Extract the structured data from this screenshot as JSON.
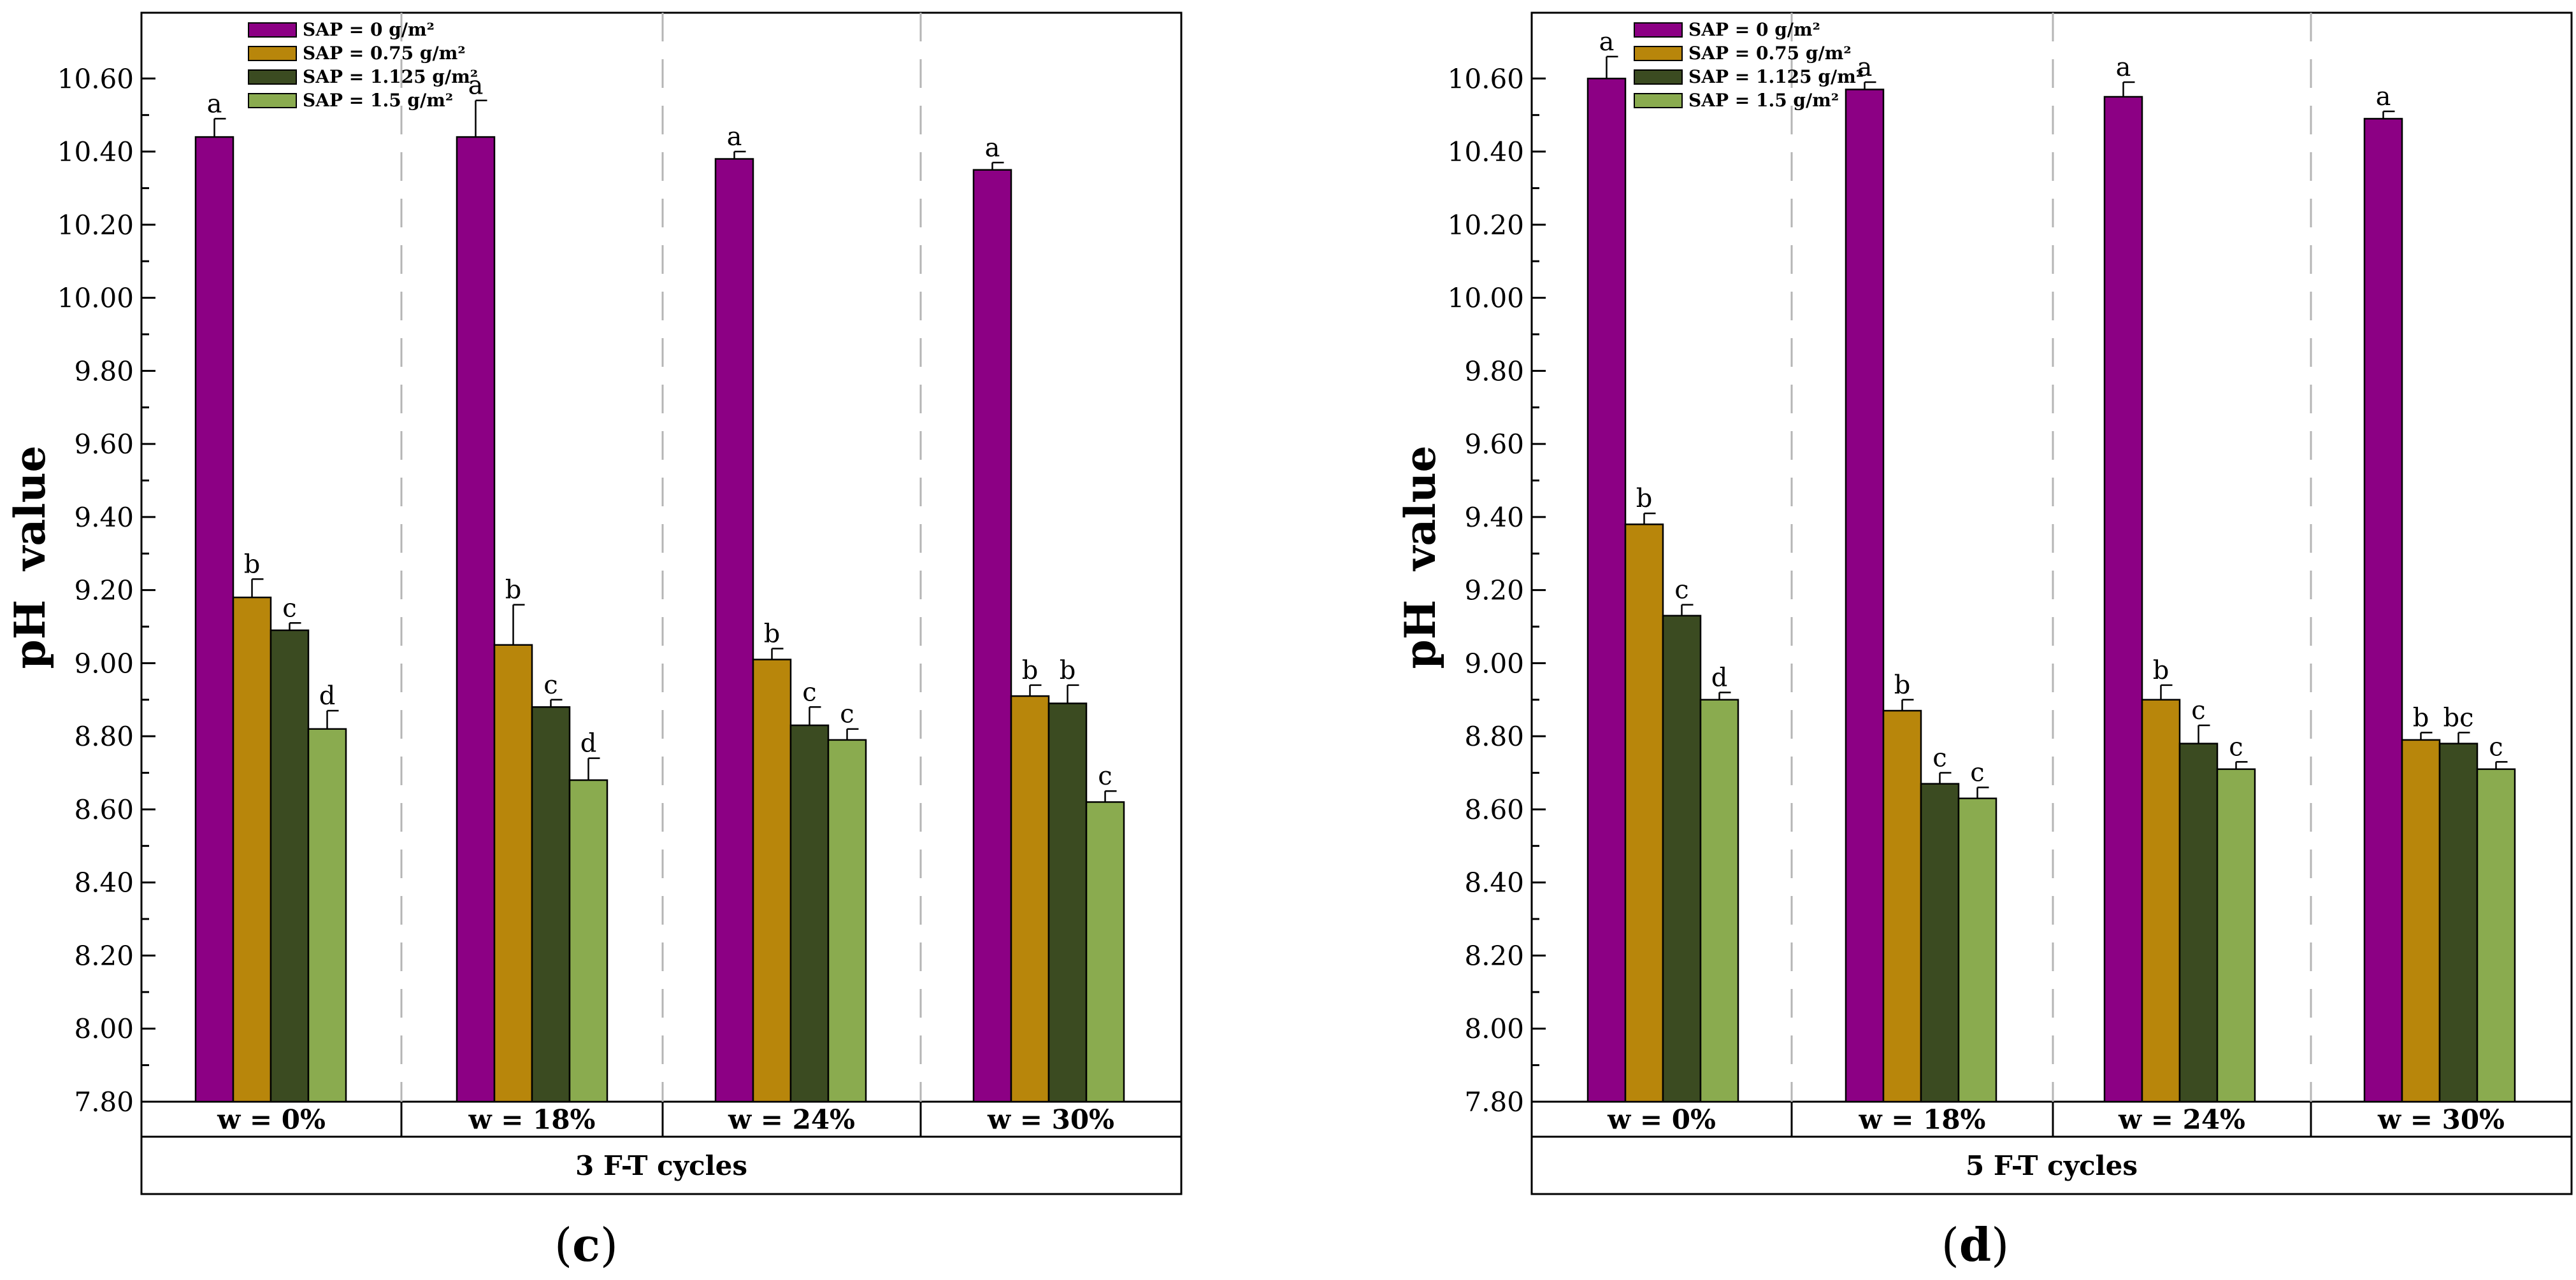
{
  "chart_data": [
    {
      "type": "bar",
      "panel_label": "(c)",
      "panel_letter": "c",
      "ylabel": "pH  value",
      "ylim": [
        7.8,
        10.78
      ],
      "yticks": [
        "7.80",
        "8.00",
        "8.20",
        "8.40",
        "8.60",
        "8.80",
        "9.00",
        "9.20",
        "9.40",
        "9.60",
        "9.80",
        "10.00",
        "10.20",
        "10.40",
        "10.60"
      ],
      "categories": [
        "w = 0%",
        "w = 18%",
        "w = 24%",
        "w = 30%"
      ],
      "group_label": "3 F-T cycles",
      "legend_position": "top-left",
      "series": [
        {
          "name": "SAP = 0 g/m²",
          "color": "#8c0084",
          "values": [
            10.44,
            10.44,
            10.38,
            10.35
          ],
          "errors": [
            0.05,
            0.1,
            0.02,
            0.02
          ],
          "letters": [
            "a",
            "a",
            "a",
            "a"
          ]
        },
        {
          "name": "SAP = 0.75 g/m²",
          "color": "#b8860b",
          "values": [
            9.18,
            9.05,
            9.01,
            8.91
          ],
          "errors": [
            0.05,
            0.11,
            0.03,
            0.03
          ],
          "letters": [
            "b",
            "b",
            "b",
            "b"
          ]
        },
        {
          "name": "SAP = 1.125 g/m²",
          "color": "#3b4b21",
          "values": [
            9.09,
            8.88,
            8.83,
            8.89
          ],
          "errors": [
            0.02,
            0.02,
            0.05,
            0.05
          ],
          "letters": [
            "c",
            "c",
            "c",
            "b"
          ]
        },
        {
          "name": "SAP = 1.5 g/m²",
          "color": "#8aab4f",
          "values": [
            8.82,
            8.68,
            8.79,
            8.62
          ],
          "errors": [
            0.05,
            0.06,
            0.03,
            0.03
          ],
          "letters": [
            "d",
            "d",
            "c",
            "c"
          ]
        }
      ]
    },
    {
      "type": "bar",
      "panel_label": "(d)",
      "panel_letter": "d",
      "ylabel": "pH  value",
      "ylim": [
        7.8,
        10.78
      ],
      "yticks": [
        "7.80",
        "8.00",
        "8.20",
        "8.40",
        "8.60",
        "8.80",
        "9.00",
        "9.20",
        "9.40",
        "9.60",
        "9.80",
        "10.00",
        "10.20",
        "10.40",
        "10.60"
      ],
      "categories": [
        "w = 0%",
        "w = 18%",
        "w = 24%",
        "w = 30%"
      ],
      "group_label": "5 F-T cycles",
      "legend_position": "top-left",
      "series": [
        {
          "name": "SAP = 0 g/m²",
          "color": "#8c0084",
          "values": [
            10.6,
            10.57,
            10.55,
            10.49
          ],
          "errors": [
            0.06,
            0.02,
            0.04,
            0.02
          ],
          "letters": [
            "a",
            "a",
            "a",
            "a"
          ]
        },
        {
          "name": "SAP = 0.75 g/m²",
          "color": "#b8860b",
          "values": [
            9.38,
            8.87,
            8.9,
            8.79
          ],
          "errors": [
            0.03,
            0.03,
            0.04,
            0.02
          ],
          "letters": [
            "b",
            "b",
            "b",
            "b"
          ]
        },
        {
          "name": "SAP = 1.125 g/m²",
          "color": "#3b4b21",
          "values": [
            9.13,
            8.67,
            8.78,
            8.78
          ],
          "errors": [
            0.03,
            0.03,
            0.05,
            0.03
          ],
          "letters": [
            "c",
            "c",
            "c",
            "bc"
          ]
        },
        {
          "name": "SAP = 1.5 g/m²",
          "color": "#8aab4f",
          "values": [
            8.9,
            8.63,
            8.71,
            8.71
          ],
          "errors": [
            0.02,
            0.03,
            0.02,
            0.02
          ],
          "letters": [
            "d",
            "c",
            "c",
            "c"
          ]
        }
      ]
    }
  ]
}
